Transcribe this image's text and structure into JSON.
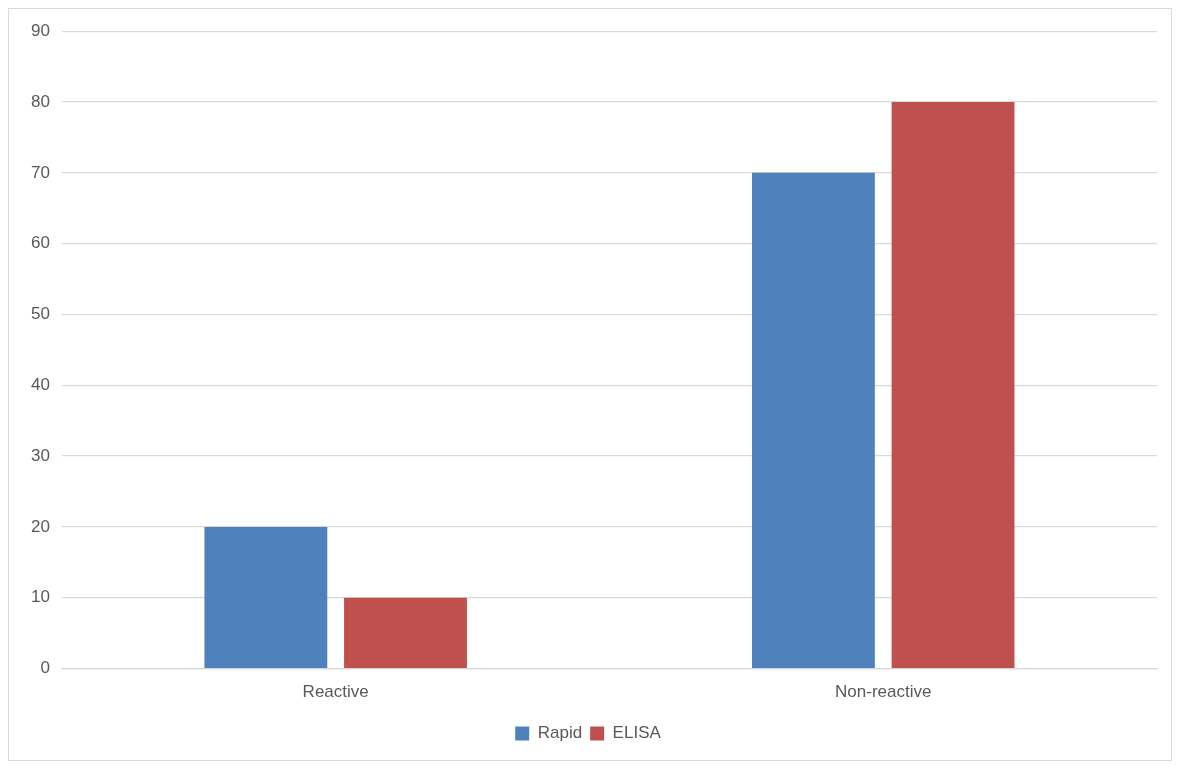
{
  "chart_data": {
    "type": "bar",
    "categories": [
      "Reactive",
      "Non-reactive"
    ],
    "series": [
      {
        "name": "Rapid",
        "color": "#4f81bd",
        "values": [
          20,
          70
        ]
      },
      {
        "name": "ELISA",
        "color": "#c0504d",
        "values": [
          10,
          80
        ]
      }
    ],
    "ylim": [
      0,
      90
    ],
    "yticks": [
      0,
      10,
      20,
      30,
      40,
      50,
      60,
      70,
      80,
      90
    ],
    "grid": "y",
    "legend": "bottom"
  }
}
